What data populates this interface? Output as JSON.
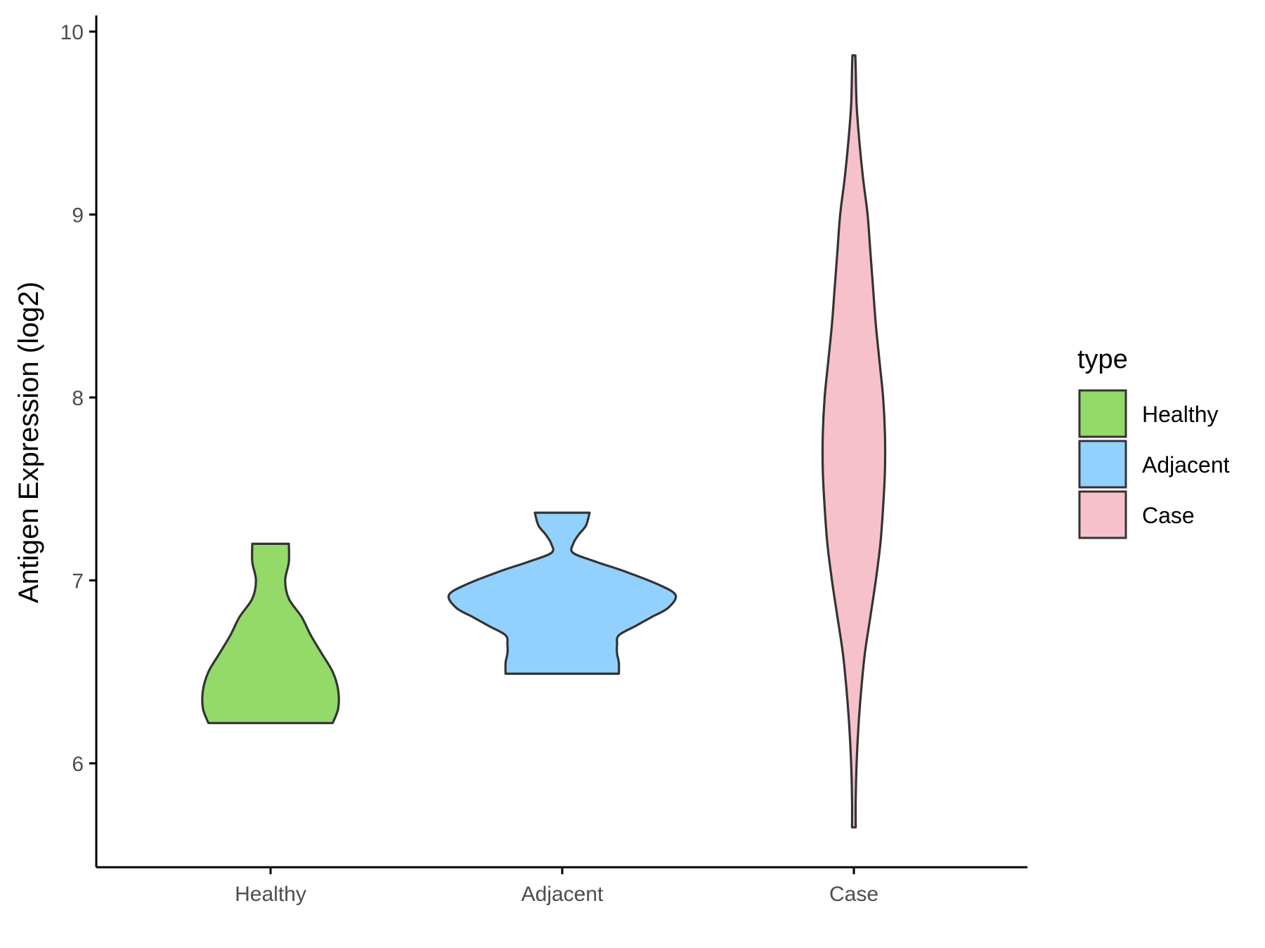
{
  "chart_data": {
    "type": "violin",
    "ylabel": "Antigen Expression (log2)",
    "xlabel": "",
    "categories": [
      "Healthy",
      "Adjacent",
      "Case"
    ],
    "ylim": [
      5.45,
      10.1
    ],
    "yticks": [
      6,
      7,
      8,
      9,
      10
    ],
    "grid": false,
    "legend": {
      "title": "type",
      "position": "right",
      "entries": [
        "Healthy",
        "Adjacent",
        "Case"
      ]
    },
    "colors": {
      "Healthy": "#93DA69",
      "Adjacent": "#92D1FD",
      "Case": "#F7C1CB",
      "outline": "#333333"
    },
    "series": [
      {
        "name": "Healthy",
        "min": 6.22,
        "max": 7.2,
        "density_profile": [
          [
            6.22,
            0.34
          ],
          [
            6.3,
            0.37
          ],
          [
            6.4,
            0.37
          ],
          [
            6.5,
            0.34
          ],
          [
            6.6,
            0.28
          ],
          [
            6.7,
            0.22
          ],
          [
            6.8,
            0.17
          ],
          [
            6.9,
            0.1
          ],
          [
            7.0,
            0.08
          ],
          [
            7.1,
            0.1
          ],
          [
            7.2,
            0.1
          ]
        ]
      },
      {
        "name": "Adjacent",
        "min": 6.49,
        "max": 7.37,
        "density_profile": [
          [
            6.49,
            0.31
          ],
          [
            6.55,
            0.31
          ],
          [
            6.6,
            0.3
          ],
          [
            6.65,
            0.3
          ],
          [
            6.7,
            0.31
          ],
          [
            6.75,
            0.4
          ],
          [
            6.8,
            0.49
          ],
          [
            6.85,
            0.58
          ],
          [
            6.92,
            0.62
          ],
          [
            6.98,
            0.52
          ],
          [
            7.05,
            0.34
          ],
          [
            7.1,
            0.19
          ],
          [
            7.15,
            0.06
          ],
          [
            7.2,
            0.06
          ],
          [
            7.25,
            0.09
          ],
          [
            7.3,
            0.13
          ],
          [
            7.37,
            0.15
          ]
        ]
      },
      {
        "name": "Case",
        "min": 5.65,
        "max": 9.87,
        "density_profile": [
          [
            5.65,
            0.01
          ],
          [
            5.8,
            0.01
          ],
          [
            6.0,
            0.015
          ],
          [
            6.2,
            0.025
          ],
          [
            6.4,
            0.04
          ],
          [
            6.6,
            0.06
          ],
          [
            6.8,
            0.09
          ],
          [
            7.0,
            0.12
          ],
          [
            7.2,
            0.145
          ],
          [
            7.4,
            0.16
          ],
          [
            7.6,
            0.17
          ],
          [
            7.8,
            0.17
          ],
          [
            8.0,
            0.16
          ],
          [
            8.2,
            0.14
          ],
          [
            8.4,
            0.12
          ],
          [
            8.6,
            0.105
          ],
          [
            8.8,
            0.09
          ],
          [
            9.0,
            0.075
          ],
          [
            9.2,
            0.05
          ],
          [
            9.4,
            0.03
          ],
          [
            9.6,
            0.015
          ],
          [
            9.8,
            0.01
          ],
          [
            9.87,
            0.008
          ]
        ]
      }
    ]
  }
}
